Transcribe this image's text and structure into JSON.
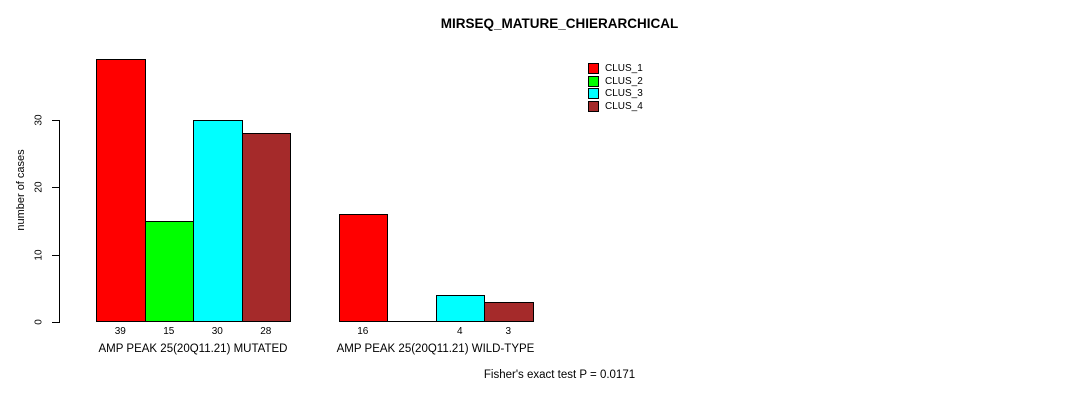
{
  "chart_data": {
    "type": "bar",
    "title": "MIRSEQ_MATURE_CHIERARCHICAL",
    "ylabel": "number of cases",
    "xlabel": "",
    "yticks": [
      0,
      10,
      20,
      30
    ],
    "ylim": [
      0,
      39
    ],
    "grid": false,
    "legend_position": "top-right",
    "categories": [
      "AMP PEAK 25(20Q11.21) MUTATED",
      "AMP PEAK 25(20Q11.21) WILD-TYPE"
    ],
    "series": [
      {
        "name": "CLUS_1",
        "color": "#FF0000",
        "values": [
          39,
          16
        ]
      },
      {
        "name": "CLUS_2",
        "color": "#00FF00",
        "values": [
          15,
          0
        ]
      },
      {
        "name": "CLUS_3",
        "color": "#00FFFF",
        "values": [
          30,
          4
        ]
      },
      {
        "name": "CLUS_4",
        "color": "#A52A2A",
        "values": [
          28,
          3
        ]
      }
    ],
    "bar_value_labels": [
      [
        39,
        15,
        30,
        28
      ],
      [
        16,
        null,
        4,
        3
      ]
    ],
    "annotation": "Fisher's exact test P = 0.0171",
    "axis_color": "#000000",
    "bar_border_color": "#000000"
  }
}
